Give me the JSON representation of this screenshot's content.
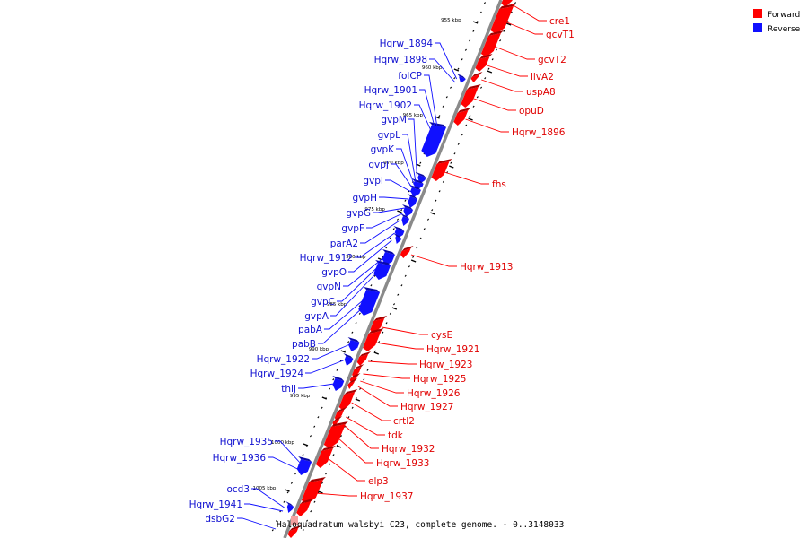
{
  "caption": "Haloquadratum walsbyi C23, complete genome. - 0..3148033",
  "legend": [
    {
      "label": "Forward",
      "color": "#ff0000"
    },
    {
      "label": "Reverse",
      "color": "#1010ff"
    }
  ],
  "colors": {
    "forward": "#ff0000",
    "reverse": "#1010ff",
    "backbone": "#808080"
  },
  "ticks": [
    "955 kbp",
    "960 kbp",
    "965 kbp",
    "970 kbp",
    "975 kbp",
    "980 kbp",
    "985 kbp",
    "990 kbp",
    "995 kbp",
    "1000 kbp",
    "1005 kbp"
  ],
  "forward_genes": [
    "cre1",
    "gcvT1",
    "gcvT2",
    "ilvA2",
    "uspA8",
    "opuD",
    "Hqrw_1896",
    "fhs",
    "Hqrw_1913",
    "cysE",
    "Hqrw_1921",
    "Hqrw_1923",
    "Hqrw_1925",
    "Hqrw_1926",
    "Hqrw_1927",
    "crtI2",
    "tdk",
    "Hqrw_1932",
    "Hqrw_1933",
    "elp3",
    "Hqrw_1937"
  ],
  "reverse_genes": [
    "Hqrw_1894",
    "Hqrw_1898",
    "folCP",
    "Hqrw_1901",
    "Hqrw_1902",
    "gvpM",
    "gvpL",
    "gvpK",
    "gvpJ",
    "gvpI",
    "gvpH",
    "gvpG",
    "gvpF",
    "parA2",
    "Hqrw_1912",
    "gvpO",
    "gvpN",
    "gvpC",
    "gvpA",
    "pabA",
    "pabB",
    "Hqrw_1922",
    "Hqrw_1924",
    "thiJ",
    "Hqrw_1935",
    "Hqrw_1936",
    "ocd3",
    "Hqrw_1941",
    "dsbG2"
  ]
}
